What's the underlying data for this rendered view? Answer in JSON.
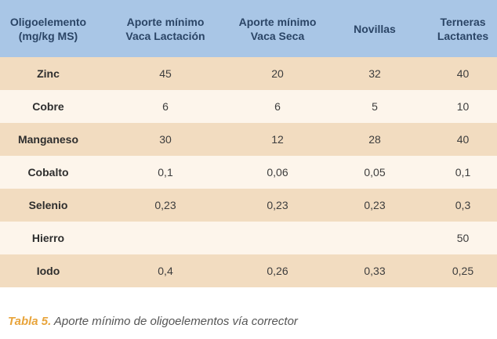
{
  "table": {
    "headers": [
      {
        "line1": "Oligoelemento",
        "line2": "(mg/kg MS)"
      },
      {
        "line1": "Aporte mínimo",
        "line2": "Vaca Lactación"
      },
      {
        "line1": "Aporte mínimo",
        "line2": "Vaca Seca"
      },
      {
        "line1": "Novillas",
        "line2": ""
      },
      {
        "line1": "Terneras",
        "line2": "Lactantes"
      }
    ],
    "rows": [
      {
        "name": "Zinc",
        "values": [
          "45",
          "20",
          "32",
          "40"
        ]
      },
      {
        "name": "Cobre",
        "values": [
          "6",
          "6",
          "5",
          "10"
        ]
      },
      {
        "name": "Manganeso",
        "values": [
          "30",
          "12",
          "28",
          "40"
        ]
      },
      {
        "name": "Cobalto",
        "values": [
          "0,1",
          "0,06",
          "0,05",
          "0,1"
        ]
      },
      {
        "name": "Selenio",
        "values": [
          "0,23",
          "0,23",
          "0,23",
          "0,3"
        ]
      },
      {
        "name": "Hierro",
        "values": [
          "",
          "",
          "",
          "50"
        ]
      },
      {
        "name": "Iodo",
        "values": [
          "0,4",
          "0,26",
          "0,33",
          "0,25"
        ]
      }
    ]
  },
  "caption": {
    "label": "Tabla 5.",
    "text": " Aporte mínimo de oligoelementos vía corrector"
  },
  "colors": {
    "header_bg": "#a9c6e6",
    "header_text": "#2b4566",
    "row_odd": "#f2dcc0",
    "row_even": "#fdf5eb",
    "caption_label": "#e8a43b"
  }
}
